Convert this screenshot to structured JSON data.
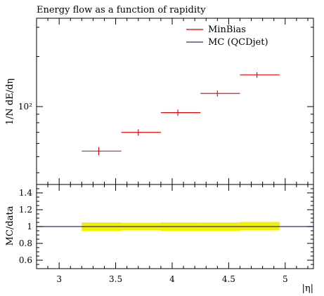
{
  "chart_data": [
    {
      "type": "scatter",
      "title": "Energy flow as a function of rapidity",
      "ylabel": "1/N dE/dη",
      "yscale": "log",
      "ylim": [
        34,
        340
      ],
      "ytick_labels": [
        "10²"
      ],
      "legend_position": "top-right",
      "series": [
        {
          "name": "MinBias",
          "color": "#e00000",
          "style": "binned points with error bars",
          "x": [
            3.35,
            3.7,
            4.05,
            4.4,
            4.75
          ],
          "x_bins": [
            [
              3.2,
              3.55
            ],
            [
              3.55,
              3.9
            ],
            [
              3.9,
              4.25
            ],
            [
              4.25,
              4.6
            ],
            [
              4.6,
              4.95
            ]
          ],
          "y": [
            54,
            70,
            92,
            120,
            155
          ],
          "yerr": [
            3,
            3,
            4,
            5,
            6
          ]
        },
        {
          "name": "MC (QCDjet)",
          "color": "#0000b0",
          "style": "line",
          "x": [],
          "y": []
        }
      ]
    },
    {
      "type": "line",
      "ylabel": "MC/data",
      "xlabel": "|η|",
      "xlim": [
        2.8,
        5.25
      ],
      "ylim": [
        0.5,
        1.5
      ],
      "x_tick_labels": [
        "3",
        "3.5",
        "4",
        "4.5",
        "5"
      ],
      "y_tick_labels": [
        "0.6",
        "0.8",
        "1",
        "1.2",
        "1.4"
      ],
      "series": [
        {
          "name": "MC (QCDjet)",
          "color": "#2c2c80",
          "x": [
            2.8,
            5.25
          ],
          "y": [
            1,
            1
          ]
        },
        {
          "name": "data uncertainty band",
          "color": "#f2f200",
          "x_bins": [
            [
              3.2,
              3.55
            ],
            [
              3.55,
              3.9
            ],
            [
              3.9,
              4.25
            ],
            [
              4.25,
              4.6
            ],
            [
              4.6,
              4.95
            ]
          ],
          "lo": [
            0.95,
            0.955,
            0.95,
            0.95,
            0.955
          ],
          "hi": [
            1.05,
            1.045,
            1.05,
            1.05,
            1.055
          ]
        }
      ]
    }
  ]
}
